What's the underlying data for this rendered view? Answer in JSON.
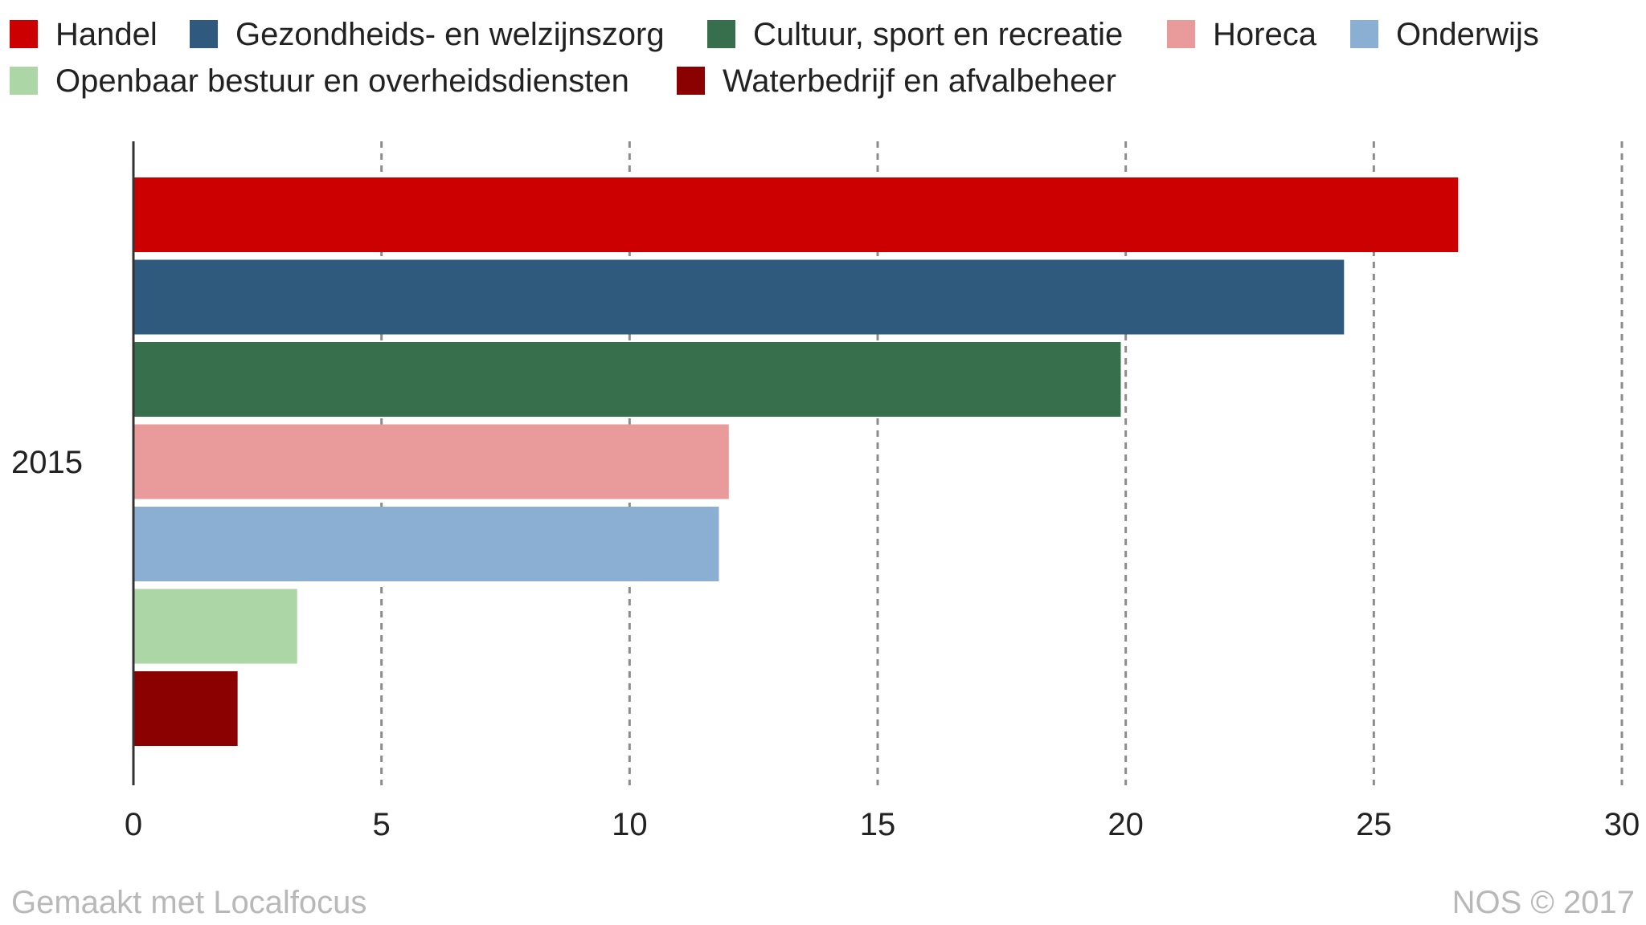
{
  "chart_data": {
    "type": "bar",
    "orientation": "horizontal",
    "categories": [
      "2015"
    ],
    "series": [
      {
        "name": "Handel",
        "values": [
          26.7
        ],
        "color": "#cc0000"
      },
      {
        "name": "Gezondheids- en welzijnszorg",
        "values": [
          24.4
        ],
        "color": "#2f5a7d"
      },
      {
        "name": "Cultuur, sport en recreatie",
        "values": [
          19.9
        ],
        "color": "#376e4b"
      },
      {
        "name": "Horeca",
        "values": [
          12.0
        ],
        "color": "#e99a9a"
      },
      {
        "name": "Onderwijs",
        "values": [
          11.8
        ],
        "color": "#8aafd3"
      },
      {
        "name": "Openbaar bestuur en overheidsdiensten",
        "values": [
          3.3
        ],
        "color": "#acd6a6"
      },
      {
        "name": "Waterbedrijf en afvalbeheer",
        "values": [
          2.1
        ],
        "color": "#8b0000"
      }
    ],
    "xlim": [
      0,
      30
    ],
    "xticks": [
      "0",
      "5",
      "10",
      "15",
      "20",
      "25",
      "30"
    ],
    "grid": true,
    "legend": "top"
  },
  "footer": {
    "left": "Gemaakt met Localfocus",
    "right": "NOS © 2017"
  }
}
